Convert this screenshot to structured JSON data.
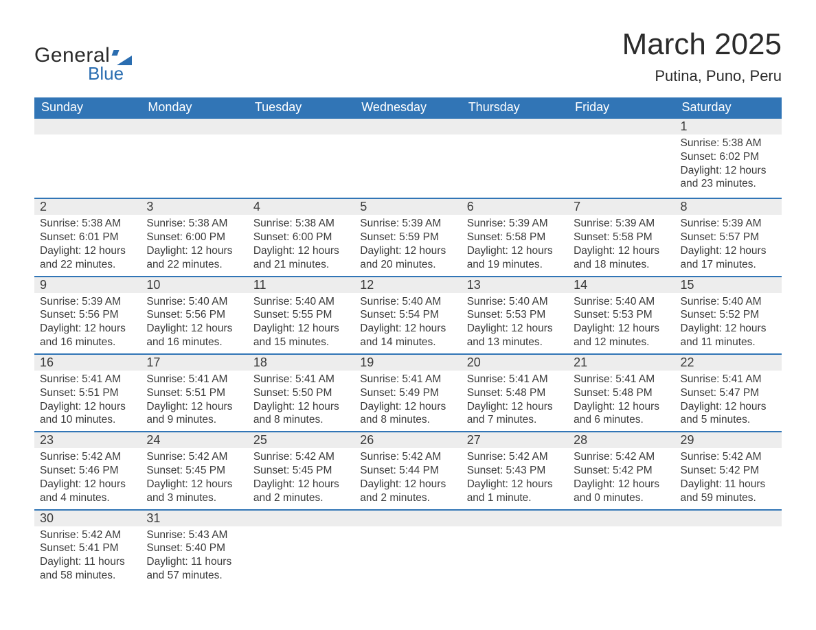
{
  "logo": {
    "line1": "General",
    "line2": "Blue"
  },
  "title": "March 2025",
  "location": "Putina, Puno, Peru",
  "colors": {
    "header_bg": "#3175b6",
    "header_text": "#ffffff",
    "daynum_bg": "#ededed",
    "row_border": "#3175b6",
    "text": "#3a3a3a",
    "page_bg": "#ffffff",
    "logo_blue": "#2a6db0"
  },
  "typography": {
    "title_fontsize": 44,
    "location_fontsize": 22,
    "dayhead_fontsize": 18,
    "daynum_fontsize": 18,
    "body_fontsize": 15.5,
    "font_family": "Arial"
  },
  "layout": {
    "columns": 7,
    "week_rows": 6
  },
  "day_headers": [
    "Sunday",
    "Monday",
    "Tuesday",
    "Wednesday",
    "Thursday",
    "Friday",
    "Saturday"
  ],
  "weeks": [
    [
      {
        "num": "",
        "lines": [
          "",
          "",
          "",
          ""
        ]
      },
      {
        "num": "",
        "lines": [
          "",
          "",
          "",
          ""
        ]
      },
      {
        "num": "",
        "lines": [
          "",
          "",
          "",
          ""
        ]
      },
      {
        "num": "",
        "lines": [
          "",
          "",
          "",
          ""
        ]
      },
      {
        "num": "",
        "lines": [
          "",
          "",
          "",
          ""
        ]
      },
      {
        "num": "",
        "lines": [
          "",
          "",
          "",
          ""
        ]
      },
      {
        "num": "1",
        "lines": [
          "Sunrise: 5:38 AM",
          "Sunset: 6:02 PM",
          "Daylight: 12 hours",
          "and 23 minutes."
        ]
      }
    ],
    [
      {
        "num": "2",
        "lines": [
          "Sunrise: 5:38 AM",
          "Sunset: 6:01 PM",
          "Daylight: 12 hours",
          "and 22 minutes."
        ]
      },
      {
        "num": "3",
        "lines": [
          "Sunrise: 5:38 AM",
          "Sunset: 6:00 PM",
          "Daylight: 12 hours",
          "and 22 minutes."
        ]
      },
      {
        "num": "4",
        "lines": [
          "Sunrise: 5:38 AM",
          "Sunset: 6:00 PM",
          "Daylight: 12 hours",
          "and 21 minutes."
        ]
      },
      {
        "num": "5",
        "lines": [
          "Sunrise: 5:39 AM",
          "Sunset: 5:59 PM",
          "Daylight: 12 hours",
          "and 20 minutes."
        ]
      },
      {
        "num": "6",
        "lines": [
          "Sunrise: 5:39 AM",
          "Sunset: 5:58 PM",
          "Daylight: 12 hours",
          "and 19 minutes."
        ]
      },
      {
        "num": "7",
        "lines": [
          "Sunrise: 5:39 AM",
          "Sunset: 5:58 PM",
          "Daylight: 12 hours",
          "and 18 minutes."
        ]
      },
      {
        "num": "8",
        "lines": [
          "Sunrise: 5:39 AM",
          "Sunset: 5:57 PM",
          "Daylight: 12 hours",
          "and 17 minutes."
        ]
      }
    ],
    [
      {
        "num": "9",
        "lines": [
          "Sunrise: 5:39 AM",
          "Sunset: 5:56 PM",
          "Daylight: 12 hours",
          "and 16 minutes."
        ]
      },
      {
        "num": "10",
        "lines": [
          "Sunrise: 5:40 AM",
          "Sunset: 5:56 PM",
          "Daylight: 12 hours",
          "and 16 minutes."
        ]
      },
      {
        "num": "11",
        "lines": [
          "Sunrise: 5:40 AM",
          "Sunset: 5:55 PM",
          "Daylight: 12 hours",
          "and 15 minutes."
        ]
      },
      {
        "num": "12",
        "lines": [
          "Sunrise: 5:40 AM",
          "Sunset: 5:54 PM",
          "Daylight: 12 hours",
          "and 14 minutes."
        ]
      },
      {
        "num": "13",
        "lines": [
          "Sunrise: 5:40 AM",
          "Sunset: 5:53 PM",
          "Daylight: 12 hours",
          "and 13 minutes."
        ]
      },
      {
        "num": "14",
        "lines": [
          "Sunrise: 5:40 AM",
          "Sunset: 5:53 PM",
          "Daylight: 12 hours",
          "and 12 minutes."
        ]
      },
      {
        "num": "15",
        "lines": [
          "Sunrise: 5:40 AM",
          "Sunset: 5:52 PM",
          "Daylight: 12 hours",
          "and 11 minutes."
        ]
      }
    ],
    [
      {
        "num": "16",
        "lines": [
          "Sunrise: 5:41 AM",
          "Sunset: 5:51 PM",
          "Daylight: 12 hours",
          "and 10 minutes."
        ]
      },
      {
        "num": "17",
        "lines": [
          "Sunrise: 5:41 AM",
          "Sunset: 5:51 PM",
          "Daylight: 12 hours",
          "and 9 minutes."
        ]
      },
      {
        "num": "18",
        "lines": [
          "Sunrise: 5:41 AM",
          "Sunset: 5:50 PM",
          "Daylight: 12 hours",
          "and 8 minutes."
        ]
      },
      {
        "num": "19",
        "lines": [
          "Sunrise: 5:41 AM",
          "Sunset: 5:49 PM",
          "Daylight: 12 hours",
          "and 8 minutes."
        ]
      },
      {
        "num": "20",
        "lines": [
          "Sunrise: 5:41 AM",
          "Sunset: 5:48 PM",
          "Daylight: 12 hours",
          "and 7 minutes."
        ]
      },
      {
        "num": "21",
        "lines": [
          "Sunrise: 5:41 AM",
          "Sunset: 5:48 PM",
          "Daylight: 12 hours",
          "and 6 minutes."
        ]
      },
      {
        "num": "22",
        "lines": [
          "Sunrise: 5:41 AM",
          "Sunset: 5:47 PM",
          "Daylight: 12 hours",
          "and 5 minutes."
        ]
      }
    ],
    [
      {
        "num": "23",
        "lines": [
          "Sunrise: 5:42 AM",
          "Sunset: 5:46 PM",
          "Daylight: 12 hours",
          "and 4 minutes."
        ]
      },
      {
        "num": "24",
        "lines": [
          "Sunrise: 5:42 AM",
          "Sunset: 5:45 PM",
          "Daylight: 12 hours",
          "and 3 minutes."
        ]
      },
      {
        "num": "25",
        "lines": [
          "Sunrise: 5:42 AM",
          "Sunset: 5:45 PM",
          "Daylight: 12 hours",
          "and 2 minutes."
        ]
      },
      {
        "num": "26",
        "lines": [
          "Sunrise: 5:42 AM",
          "Sunset: 5:44 PM",
          "Daylight: 12 hours",
          "and 2 minutes."
        ]
      },
      {
        "num": "27",
        "lines": [
          "Sunrise: 5:42 AM",
          "Sunset: 5:43 PM",
          "Daylight: 12 hours",
          "and 1 minute."
        ]
      },
      {
        "num": "28",
        "lines": [
          "Sunrise: 5:42 AM",
          "Sunset: 5:42 PM",
          "Daylight: 12 hours",
          "and 0 minutes."
        ]
      },
      {
        "num": "29",
        "lines": [
          "Sunrise: 5:42 AM",
          "Sunset: 5:42 PM",
          "Daylight: 11 hours",
          "and 59 minutes."
        ]
      }
    ],
    [
      {
        "num": "30",
        "lines": [
          "Sunrise: 5:42 AM",
          "Sunset: 5:41 PM",
          "Daylight: 11 hours",
          "and 58 minutes."
        ]
      },
      {
        "num": "31",
        "lines": [
          "Sunrise: 5:43 AM",
          "Sunset: 5:40 PM",
          "Daylight: 11 hours",
          "and 57 minutes."
        ]
      },
      {
        "num": "",
        "lines": [
          "",
          "",
          "",
          ""
        ]
      },
      {
        "num": "",
        "lines": [
          "",
          "",
          "",
          ""
        ]
      },
      {
        "num": "",
        "lines": [
          "",
          "",
          "",
          ""
        ]
      },
      {
        "num": "",
        "lines": [
          "",
          "",
          "",
          ""
        ]
      },
      {
        "num": "",
        "lines": [
          "",
          "",
          "",
          ""
        ]
      }
    ]
  ]
}
